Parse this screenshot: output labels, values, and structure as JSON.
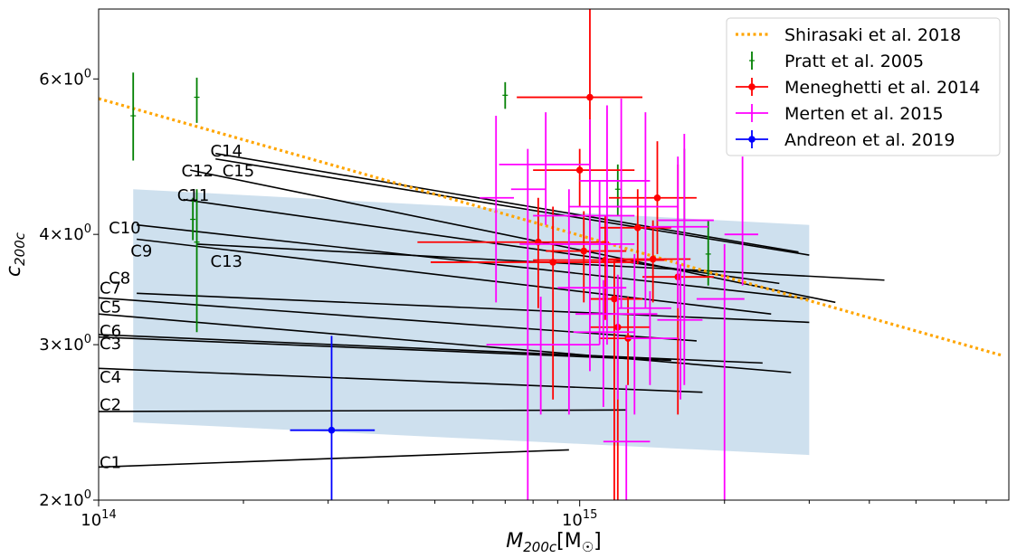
{
  "chart_data": {
    "type": "scatter",
    "xscale": "log",
    "yscale": "log",
    "xlim": [
      100000000000000.0,
      7800000000000000.0
    ],
    "ylim": [
      2.0,
      7.2
    ],
    "xlabel_tex": "M200c[M☉]",
    "ylabel_tex": "c200c",
    "x_ticks": [
      {
        "value": 100000000000000.0,
        "label": "10^14"
      },
      {
        "value": 1000000000000000.0,
        "label": "10^15"
      }
    ],
    "y_ticks": [
      {
        "value": 2,
        "label": "2×10^0"
      },
      {
        "value": 3,
        "label": "3×10^0"
      },
      {
        "value": 4,
        "label": "4×10^0"
      },
      {
        "value": 6,
        "label": "6×10^0"
      }
    ],
    "legend": {
      "placement": "top-right",
      "entries": [
        {
          "label": "Shirasaki et al. 2018",
          "color": "#ffa500",
          "style": "dotted-line"
        },
        {
          "label": "Pratt et al. 2005",
          "color": "#008000",
          "style": "errorbar"
        },
        {
          "label": "Meneghetti et al. 2014",
          "color": "#ff0000",
          "style": "errorbar-dot"
        },
        {
          "label": "Merten et al. 2015",
          "color": "#ff00ff",
          "style": "errorbar"
        },
        {
          "label": "Andreon et al. 2019",
          "color": "#0000ff",
          "style": "errorbar-dot"
        }
      ]
    },
    "shaded_band": {
      "color": "#c6dbeb",
      "x": [
        118000000000000.0,
        3000000000000000.0
      ],
      "upper": [
        4.5,
        4.1
      ],
      "lower": [
        2.45,
        2.25
      ]
    },
    "shirasaki_curve": {
      "color": "#ffa500",
      "x": [
        100000000000000.0,
        7500000000000000.0
      ],
      "y": [
        5.7,
        2.92
      ]
    },
    "cluster_lines": [
      {
        "name": "C1",
        "x": [
          100000000000000.0,
          950000000000000.0
        ],
        "y": [
          2.18,
          2.28
        ]
      },
      {
        "name": "C2",
        "x": [
          100000000000000.0,
          1250000000000000.0
        ],
        "y": [
          2.52,
          2.53
        ]
      },
      {
        "name": "C3",
        "x": [
          100000000000000.0,
          1550000000000000.0
        ],
        "y": [
          3.06,
          2.88
        ]
      },
      {
        "name": "C4",
        "x": [
          100000000000000.0,
          1800000000000000.0
        ],
        "y": [
          2.82,
          2.65
        ]
      },
      {
        "name": "C5",
        "x": [
          100000000000000.0,
          2750000000000000.0
        ],
        "y": [
          3.25,
          2.79
        ]
      },
      {
        "name": "C6",
        "x": [
          100000000000000.0,
          2400000000000000.0
        ],
        "y": [
          3.08,
          2.86
        ]
      },
      {
        "name": "C7",
        "x": [
          100000000000000.0,
          1750000000000000.0
        ],
        "y": [
          3.39,
          3.03
        ]
      },
      {
        "name": "C8",
        "x": [
          120000000000000.0,
          3000000000000000.0
        ],
        "y": [
          3.43,
          3.18
        ]
      },
      {
        "name": "C9",
        "x": [
          120000000000000.0,
          2500000000000000.0
        ],
        "y": [
          3.95,
          3.25
        ]
      },
      {
        "name": "C10",
        "x": [
          120000000000000.0,
          3000000000000000.0
        ],
        "y": [
          4.1,
          3.38
        ]
      },
      {
        "name": "C11",
        "x": [
          150000000000000.0,
          2600000000000000.0
        ],
        "y": [
          4.38,
          3.52
        ]
      },
      {
        "name": "C12",
        "x": [
          155000000000000.0,
          3400000000000000.0
        ],
        "y": [
          4.73,
          3.35
        ]
      },
      {
        "name": "C13",
        "x": [
          160000000000000.0,
          4300000000000000.0
        ],
        "y": [
          3.9,
          3.55
        ]
      },
      {
        "name": "C14",
        "x": [
          175000000000000.0,
          2850000000000000.0
        ],
        "y": [
          4.94,
          3.82
        ]
      },
      {
        "name": "C15",
        "x": [
          175000000000000.0,
          3000000000000000.0
        ],
        "y": [
          4.87,
          3.79
        ]
      }
    ],
    "cluster_label_positions": [
      {
        "name": "C1",
        "lx": 100000000000000.0,
        "ly": 2.2
      },
      {
        "name": "C2",
        "lx": 100000000000000.0,
        "ly": 2.56
      },
      {
        "name": "C3",
        "lx": 100000000000000.0,
        "ly": 3.0
      },
      {
        "name": "C4",
        "lx": 100000000000000.0,
        "ly": 2.75
      },
      {
        "name": "C5",
        "lx": 100000000000000.0,
        "ly": 3.3
      },
      {
        "name": "C6",
        "lx": 100000000000000.0,
        "ly": 3.1
      },
      {
        "name": "C7",
        "lx": 100000000000000.0,
        "ly": 3.47
      },
      {
        "name": "C8",
        "lx": 104500000000000.0,
        "ly": 3.56
      },
      {
        "name": "C9",
        "lx": 116000000000000.0,
        "ly": 3.82
      },
      {
        "name": "C10",
        "lx": 104500000000000.0,
        "ly": 4.06
      },
      {
        "name": "C11",
        "lx": 145000000000000.0,
        "ly": 4.42
      },
      {
        "name": "C12",
        "lx": 148000000000000.0,
        "ly": 4.71
      },
      {
        "name": "C13",
        "lx": 170000000000000.0,
        "ly": 3.72
      },
      {
        "name": "C14",
        "lx": 170000000000000.0,
        "ly": 4.96
      },
      {
        "name": "C15",
        "lx": 180000000000000.0,
        "ly": 4.71
      }
    ],
    "series": [
      {
        "name": "Pratt et al. 2005",
        "color": "#008000",
        "marker": "plus",
        "points": [
          {
            "x": 118000000000000.0,
            "y": 5.45,
            "ylo": 4.85,
            "yhi": 6.1
          },
          {
            "x": 160000000000000.0,
            "y": 5.72,
            "ylo": 5.35,
            "yhi": 6.02
          },
          {
            "x": 157000000000000.0,
            "y": 4.16,
            "ylo": 3.94,
            "yhi": 4.4
          },
          {
            "x": 160000000000000.0,
            "y": 3.92,
            "ylo": 3.1,
            "yhi": 4.5
          },
          {
            "x": 700000000000000.0,
            "y": 5.75,
            "ylo": 5.55,
            "yhi": 5.95
          },
          {
            "x": 1200000000000000.0,
            "y": 4.5,
            "ylo": 4.2,
            "yhi": 4.8
          },
          {
            "x": 1650000000000000.0,
            "y": 4.4,
            "ylo": 4.0,
            "yhi": 5.0
          },
          {
            "x": 1850000000000000.0,
            "y": 3.8,
            "ylo": 3.5,
            "yhi": 4.15
          }
        ]
      },
      {
        "name": "Meneghetti et al. 2014",
        "color": "#ff0000",
        "marker": "dot",
        "points": [
          {
            "x": 1050000000000000.0,
            "y": 5.72,
            "ylo": 3.95,
            "yhi": 7.2,
            "xlo": 740000000000000.0,
            "xhi": 1350000000000000.0
          },
          {
            "x": 1000000000000000.0,
            "y": 4.73,
            "ylo": 4.3,
            "yhi": 5.0,
            "xlo": 800000000000000.0,
            "xhi": 1300000000000000.0
          },
          {
            "x": 1450000000000000.0,
            "y": 4.4,
            "ylo": 3.8,
            "yhi": 5.1,
            "xlo": 1150000000000000.0,
            "xhi": 1750000000000000.0
          },
          {
            "x": 1320000000000000.0,
            "y": 4.07,
            "ylo": 3.7,
            "yhi": 4.5,
            "xlo": 1100000000000000.0,
            "xhi": 1550000000000000.0
          },
          {
            "x": 820000000000000.0,
            "y": 3.92,
            "ylo": 3.3,
            "yhi": 4.4,
            "xlo": 460000000000000.0,
            "xhi": 1150000000000000.0
          },
          {
            "x": 1020000000000000.0,
            "y": 3.83,
            "ylo": 3.35,
            "yhi": 4.25,
            "xlo": 850000000000000.0,
            "xhi": 1250000000000000.0
          },
          {
            "x": 880000000000000.0,
            "y": 3.72,
            "ylo": 2.6,
            "yhi": 4.3,
            "xlo": 490000000000000.0,
            "xhi": 1300000000000000.0
          },
          {
            "x": 1130000000000000.0,
            "y": 3.74,
            "ylo": 3.2,
            "yhi": 4.2,
            "xlo": 800000000000000.0,
            "xhi": 1500000000000000.0
          },
          {
            "x": 1420000000000000.0,
            "y": 3.75,
            "ylo": 3.35,
            "yhi": 4.15,
            "xlo": 1150000000000000.0,
            "xhi": 1700000000000000.0
          },
          {
            "x": 1600000000000000.0,
            "y": 3.58,
            "ylo": 2.5,
            "yhi": 4.8,
            "xlo": 1350000000000000.0,
            "xhi": 1900000000000000.0
          },
          {
            "x": 1180000000000000.0,
            "y": 3.38,
            "ylo": 2.0,
            "yhi": 3.75,
            "xlo": 1050000000000000.0,
            "xhi": 1350000000000000.0
          },
          {
            "x": 1200000000000000.0,
            "y": 3.14,
            "ylo": 2.0,
            "yhi": 3.6,
            "xlo": 1050000000000000.0,
            "xhi": 1400000000000000.0
          },
          {
            "x": 1260000000000000.0,
            "y": 3.05,
            "ylo": 2.7,
            "yhi": 3.4,
            "xlo": 1100000000000000.0,
            "xhi": 1450000000000000.0
          }
        ]
      },
      {
        "name": "Merten et al. 2015",
        "color": "#ff00ff",
        "marker": "plus",
        "points": [
          {
            "x": 670000000000000.0,
            "y": 4.4,
            "ylo": 3.35,
            "yhi": 5.45,
            "xlo": 620000000000000.0,
            "xhi": 730000000000000.0
          },
          {
            "x": 850000000000000.0,
            "y": 4.8,
            "ylo": 4.1,
            "yhi": 5.5,
            "xlo": 680000000000000.0,
            "xhi": 1050000000000000.0
          },
          {
            "x": 780000000000000.0,
            "y": 4.5,
            "ylo": 2.0,
            "yhi": 5.0,
            "xlo": 720000000000000.0,
            "xhi": 850000000000000.0
          },
          {
            "x": 1050000000000000.0,
            "y": 4.2,
            "ylo": 3.2,
            "yhi": 5.4,
            "xlo": 800000000000000.0,
            "xhi": 1300000000000000.0
          },
          {
            "x": 1140000000000000.0,
            "y": 4.3,
            "ylo": 3.0,
            "yhi": 5.6,
            "xlo": 950000000000000.0,
            "xhi": 1350000000000000.0
          },
          {
            "x": 1220000000000000.0,
            "y": 4.6,
            "ylo": 3.3,
            "yhi": 5.7,
            "xlo": 1000000000000000.0,
            "xhi": 1400000000000000.0
          },
          {
            "x": 1370000000000000.0,
            "y": 4.3,
            "ylo": 3.3,
            "yhi": 5.5,
            "xlo": 1150000000000000.0,
            "xhi": 1600000000000000.0
          },
          {
            "x": 1600000000000000.0,
            "y": 4.08,
            "ylo": 3.3,
            "yhi": 4.9,
            "xlo": 1400000000000000.0,
            "xhi": 1850000000000000.0
          },
          {
            "x": 2180000000000000.0,
            "y": 4.0,
            "ylo": 3.5,
            "yhi": 4.9,
            "xlo": 2000000000000000.0,
            "xhi": 2350000000000000.0
          },
          {
            "x": 2000000000000000.0,
            "y": 3.38,
            "ylo": 2.0,
            "yhi": 3.9,
            "xlo": 1750000000000000.0,
            "xhi": 2200000000000000.0
          },
          {
            "x": 950000000000000.0,
            "y": 3.9,
            "ylo": 2.5,
            "yhi": 4.5,
            "xlo": 750000000000000.0,
            "xhi": 1200000000000000.0
          },
          {
            "x": 1100000000000000.0,
            "y": 3.9,
            "ylo": 3.0,
            "yhi": 4.6,
            "xlo": 900000000000000.0,
            "xhi": 1300000000000000.0
          },
          {
            "x": 830000000000000.0,
            "y": 3.0,
            "ylo": 2.5,
            "yhi": 3.4,
            "xlo": 640000000000000.0,
            "xhi": 1100000000000000.0
          },
          {
            "x": 1200000000000000.0,
            "y": 3.25,
            "ylo": 2.6,
            "yhi": 3.6,
            "xlo": 980000000000000.0,
            "xhi": 1450000000000000.0
          },
          {
            "x": 1050000000000000.0,
            "y": 3.48,
            "ylo": 2.8,
            "yhi": 3.9,
            "xlo": 900000000000000.0,
            "xhi": 1250000000000000.0
          },
          {
            "x": 1300000000000000.0,
            "y": 3.3,
            "ylo": 2.5,
            "yhi": 3.8,
            "xlo": 1200000000000000.0,
            "xhi": 1550000000000000.0
          },
          {
            "x": 1250000000000000.0,
            "y": 2.33,
            "ylo": 2.0,
            "yhi": 2.7,
            "xlo": 1120000000000000.0,
            "xhi": 1400000000000000.0
          },
          {
            "x": 1620000000000000.0,
            "y": 3.2,
            "ylo": 2.6,
            "yhi": 3.7,
            "xlo": 1450000000000000.0,
            "xhi": 1800000000000000.0
          },
          {
            "x": 1400000000000000.0,
            "y": 3.05,
            "ylo": 2.7,
            "yhi": 3.45,
            "xlo": 1250000000000000.0,
            "xhi": 1600000000000000.0
          },
          {
            "x": 1120000000000000.0,
            "y": 3.1,
            "ylo": 2.55,
            "yhi": 3.55,
            "xlo": 970000000000000.0,
            "xhi": 1300000000000000.0
          },
          {
            "x": 1650000000000000.0,
            "y": 4.15,
            "ylo": 2.7,
            "yhi": 5.2,
            "xlo": 1450000000000000.0,
            "xhi": 1900000000000000.0
          }
        ]
      },
      {
        "name": "Andreon et al. 2019",
        "color": "#0000ff",
        "marker": "dot",
        "points": [
          {
            "x": 305000000000000.0,
            "y": 2.4,
            "ylo": 2.0,
            "yhi": 3.07,
            "xlo": 250000000000000.0,
            "xhi": 375000000000000.0
          }
        ]
      }
    ]
  }
}
